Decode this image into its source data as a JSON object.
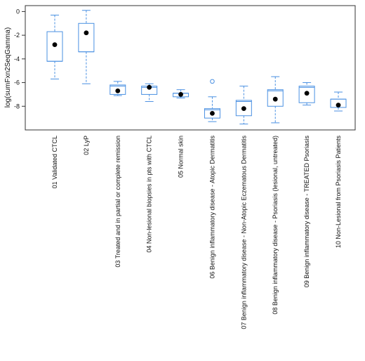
{
  "chart_data": {
    "type": "box",
    "title": "",
    "xlabel": "",
    "ylabel": "log(sumFxn2SeqGamma)",
    "ylim": [
      -10,
      0.5
    ],
    "yticks": [
      0,
      -2,
      -4,
      -6,
      -8
    ],
    "ytick_labels": [
      "0",
      "-2",
      "-4",
      "-6",
      "-8"
    ],
    "grid": false,
    "legend": "none",
    "colors": {
      "box": "#4a90e2",
      "whisker": "#4a90e2",
      "mean": "#000000",
      "frame": "#333333"
    },
    "categories": [
      "01 Validated CTCL",
      "02 LyP",
      "03 Treated and in partial or complete remission",
      "04 Non-lesional biopsies in pts with CTCL",
      "05 Normal skin",
      "06 Benign inflammatory disease - Atopic Dermatitis",
      "07 Benign inflammatory disease - Non-Atopic Eczematous Dermatitis",
      "08 Benign inflammatory disease - Psoriasis (lesional, untreated)",
      "09 Benign inflammatory disease - TREATED Psoriasis",
      "10 Non-Lesional from Psoriasis Patients"
    ],
    "boxes": [
      {
        "whisker_low": -5.7,
        "q1": -4.2,
        "median": -4.2,
        "q3": -1.7,
        "whisker_high": -0.3,
        "mean": -2.8,
        "outliers": []
      },
      {
        "whisker_low": -6.1,
        "q1": -3.4,
        "median": -3.4,
        "q3": -1.0,
        "whisker_high": 0.1,
        "mean": -1.8,
        "outliers": []
      },
      {
        "whisker_low": -7.1,
        "q1": -7.0,
        "median": -6.3,
        "q3": -6.2,
        "whisker_high": -5.9,
        "mean": -6.7,
        "outliers": []
      },
      {
        "whisker_low": -7.6,
        "q1": -7.0,
        "median": -6.4,
        "q3": -6.3,
        "whisker_high": -6.1,
        "mean": -6.4,
        "outliers": []
      },
      {
        "whisker_low": -7.3,
        "q1": -7.2,
        "median": -6.9,
        "q3": -6.9,
        "whisker_high": -6.6,
        "mean": -7.0,
        "outliers": []
      },
      {
        "whisker_low": -9.3,
        "q1": -9.0,
        "median": -8.3,
        "q3": -8.2,
        "whisker_high": -7.2,
        "mean": -8.6,
        "outliers": [
          -5.9
        ]
      },
      {
        "whisker_low": -9.5,
        "q1": -8.8,
        "median": -7.6,
        "q3": -7.5,
        "whisker_high": -6.3,
        "mean": -8.2,
        "outliers": []
      },
      {
        "whisker_low": -9.4,
        "q1": -8.0,
        "median": -6.7,
        "q3": -6.6,
        "whisker_high": -5.5,
        "mean": -7.4,
        "outliers": []
      },
      {
        "whisker_low": -7.9,
        "q1": -7.7,
        "median": -6.4,
        "q3": -6.3,
        "whisker_high": -6.0,
        "mean": -6.9,
        "outliers": []
      },
      {
        "whisker_low": -8.4,
        "q1": -8.1,
        "median": -7.4,
        "q3": -7.4,
        "whisker_high": -6.8,
        "mean": -7.9,
        "outliers": []
      }
    ]
  }
}
